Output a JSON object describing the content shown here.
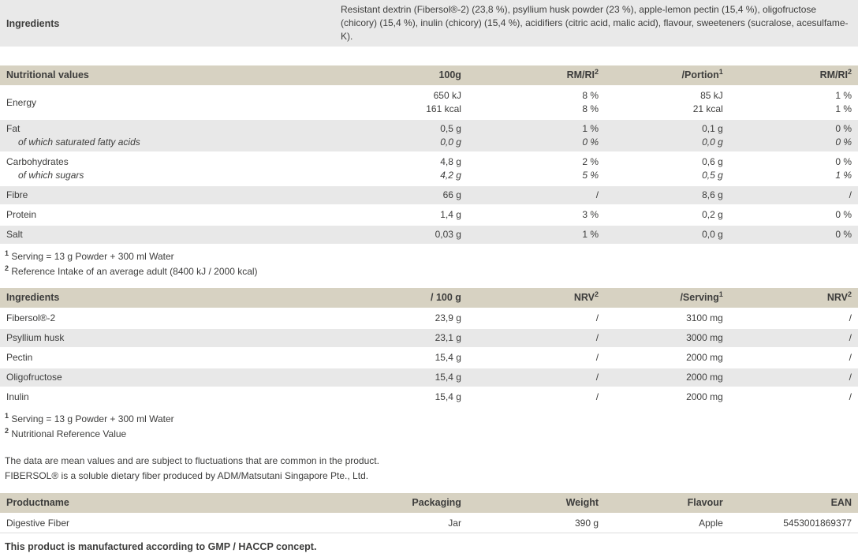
{
  "colors": {
    "table_header_bg": "#d7d2c2",
    "row_alt_bg": "#e8e8e8",
    "banner_bg": "#e9e9e9",
    "text": "#3d3d3c"
  },
  "ingredients_banner": {
    "label": "Ingredients",
    "text": "Resistant dextrin (Fibersol®-2) (23,8 %), psyllium husk powder (23 %), apple-lemon pectin (15,4 %), oligofructose (chicory) (15,4 %), inulin (chicory) (15,4 %), acidifiers (citric acid, malic acid), flavour, sweeteners (sucralose, acesulfame-K)."
  },
  "nutrition": {
    "title": "Nutritional values",
    "col_100g": "100g",
    "col_rmri": "RM/RI",
    "col_rmri_sup": "2",
    "col_portion": "/Portion",
    "col_portion_sup": "1",
    "energy": {
      "label": "Energy",
      "v100g": [
        "650 kJ",
        "161 kcal"
      ],
      "rmri1": [
        "8 %",
        "8 %"
      ],
      "portion": [
        "85 kJ",
        "21 kcal"
      ],
      "rmri2": [
        "1 %",
        "1 %"
      ]
    },
    "fat": {
      "label": "Fat",
      "sub_label": "of which saturated fatty acids",
      "v100g": [
        "0,5 g",
        "0,0 g"
      ],
      "rmri1": [
        "1 %",
        "0 %"
      ],
      "portion": [
        "0,1 g",
        "0,0 g"
      ],
      "rmri2": [
        "0 %",
        "0 %"
      ]
    },
    "carbs": {
      "label": "Carbohydrates",
      "sub_label": "of which sugars",
      "v100g": [
        "4,8 g",
        "4,2 g"
      ],
      "rmri1": [
        "2 %",
        "5 %"
      ],
      "portion": [
        "0,6 g",
        "0,5 g"
      ],
      "rmri2": [
        "0 %",
        "1 %"
      ]
    },
    "fibre": {
      "label": "Fibre",
      "v100g": "66 g",
      "rmri1": "/",
      "portion": "8,6 g",
      "rmri2": "/"
    },
    "protein": {
      "label": "Protein",
      "v100g": "1,4 g",
      "rmri1": "3 %",
      "portion": "0,2 g",
      "rmri2": "0 %"
    },
    "salt": {
      "label": "Salt",
      "v100g": "0,03 g",
      "rmri1": "1 %",
      "portion": "0,0 g",
      "rmri2": "0 %"
    },
    "footnotes": [
      {
        "sup": "1",
        "text": " Serving = 13 g Powder + 300 ml Water"
      },
      {
        "sup": "2",
        "text": " Reference Intake of an average adult (8400 kJ / 2000 kcal)"
      }
    ]
  },
  "components": {
    "title": "Ingredients",
    "col_100g": "/ 100 g",
    "col_nrv": "NRV",
    "col_nrv_sup": "2",
    "col_serving": "/Serving",
    "col_serving_sup": "1",
    "rows": [
      {
        "label": "Fibersol®-2",
        "v100g": "23,9 g",
        "nrv1": "/",
        "serving": "3100 mg",
        "nrv2": "/"
      },
      {
        "label": "Psyllium husk",
        "v100g": "23,1 g",
        "nrv1": "/",
        "serving": "3000 mg",
        "nrv2": "/"
      },
      {
        "label": "Pectin",
        "v100g": "15,4 g",
        "nrv1": "/",
        "serving": "2000 mg",
        "nrv2": "/"
      },
      {
        "label": "Oligofructose",
        "v100g": "15,4 g",
        "nrv1": "/",
        "serving": "2000 mg",
        "nrv2": "/"
      },
      {
        "label": "Inulin",
        "v100g": "15,4 g",
        "nrv1": "/",
        "serving": "2000 mg",
        "nrv2": "/"
      }
    ],
    "footnotes": [
      {
        "sup": "1",
        "text": " Serving = 13 g Powder + 300 ml Water"
      },
      {
        "sup": "2",
        "text": " Nutritional Reference Value"
      }
    ]
  },
  "notes": {
    "line1": "The data are mean values and are subject to fluctuations that are common in the product.",
    "line2": "FIBERSOL® is a soluble dietary fiber produced by ADM/Matsutani Singapore Pte., Ltd."
  },
  "product": {
    "col_productname": "Productname",
    "col_packaging": "Packaging",
    "col_weight": "Weight",
    "col_flavour": "Flavour",
    "col_ean": "EAN",
    "row": {
      "productname": "Digestive Fiber",
      "packaging": "Jar",
      "weight": "390 g",
      "flavour": "Apple",
      "ean": "5453001869377"
    }
  },
  "footer": {
    "text": "This product is manufactured according to GMP / HACCP concept."
  }
}
